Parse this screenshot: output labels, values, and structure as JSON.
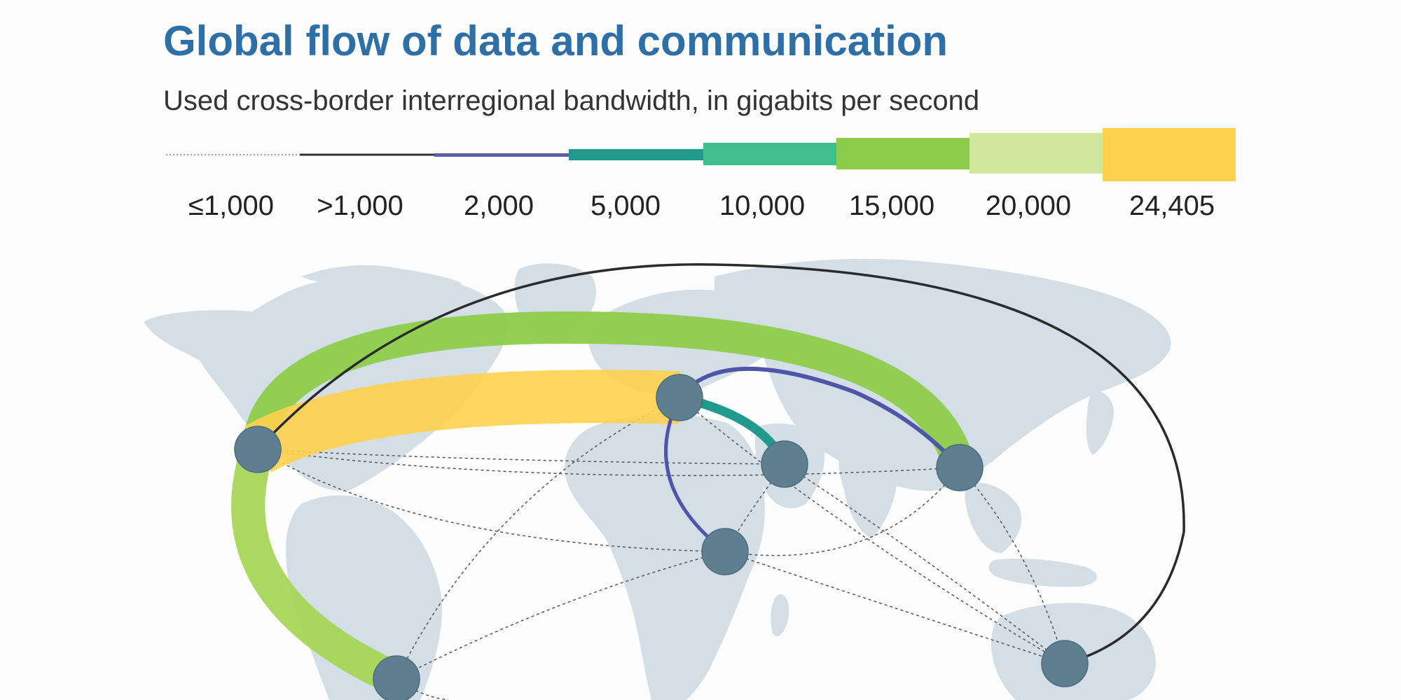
{
  "title": "Global flow of data and communication",
  "subtitle": "Used cross-border interregional bandwidth, in gigabits per second",
  "legend": {
    "items": [
      {
        "label": "≤1,000",
        "color": "#9a9a9a",
        "style": "dotted"
      },
      {
        "label": ">1,000",
        "color": "#333333",
        "style": "solid"
      },
      {
        "label": "2,000",
        "color": "#5a5fa8",
        "style": "solid"
      },
      {
        "label": "5,000",
        "color": "#1f9a8c",
        "style": "solid"
      },
      {
        "label": "10,000",
        "color": "#3fc08a",
        "style": "solid"
      },
      {
        "label": "15,000",
        "color": "#8dcc4a",
        "style": "solid"
      },
      {
        "label": "20,000",
        "color": "#cfe79a",
        "style": "solid"
      },
      {
        "label": "24,405",
        "color": "#ffd24d",
        "style": "solid"
      }
    ]
  },
  "colors": {
    "title": "#2f6fa7",
    "land": "#d3dee6",
    "node": "#5f7f90",
    "yellow_band": "#ffd24d",
    "green_band": "#8dcc4a",
    "green_band_light": "#a5d657",
    "blue_link": "#4f55a8",
    "teal_link": "#1f9a8c",
    "black_link": "#2b2b2b"
  }
}
